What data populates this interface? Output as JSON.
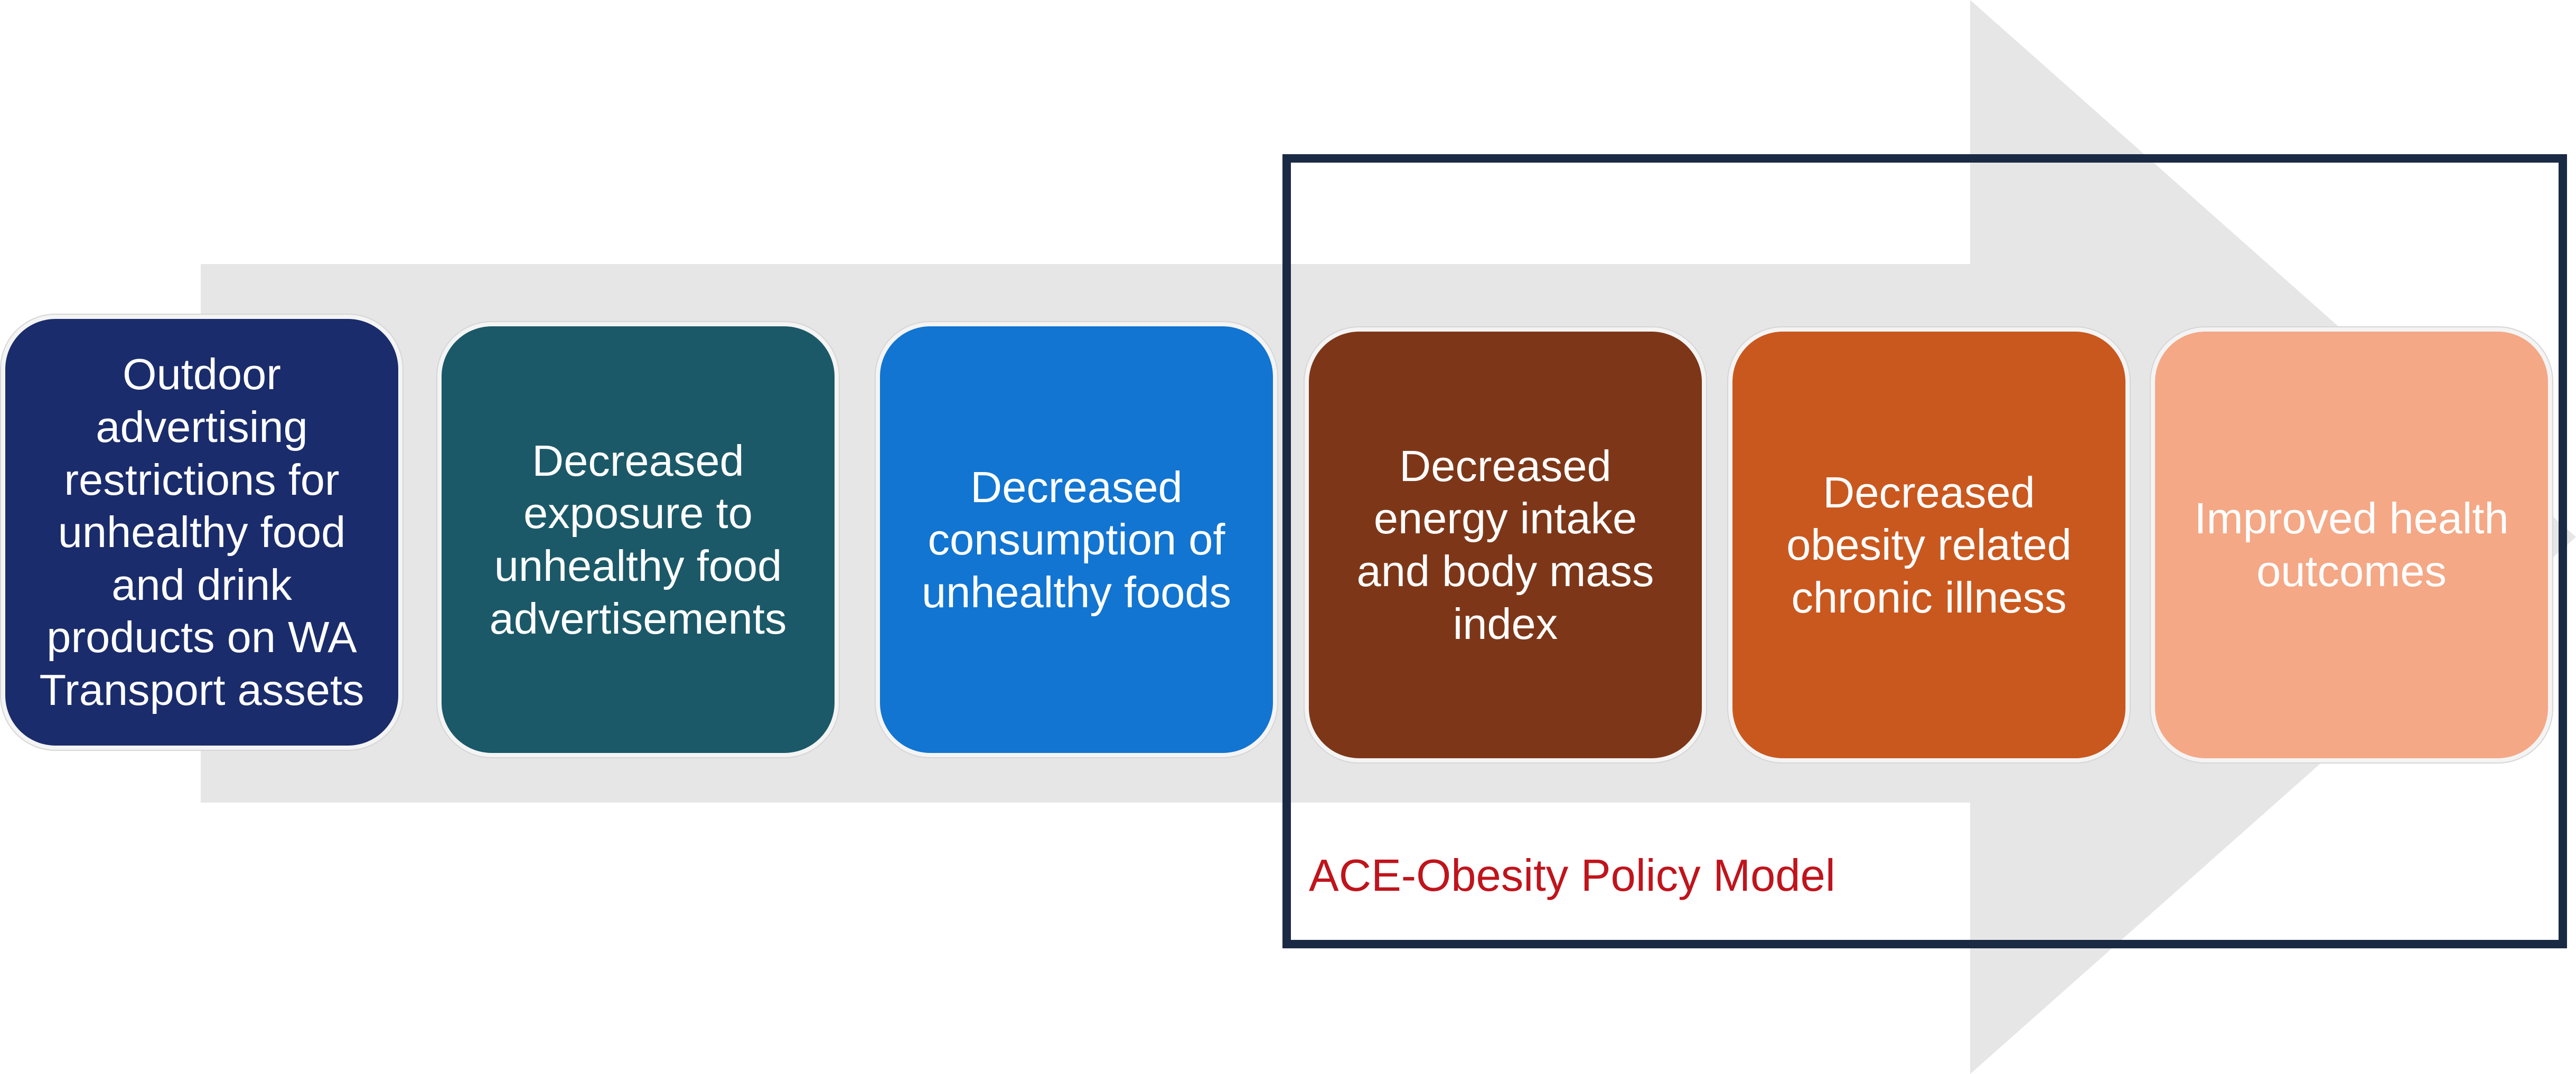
{
  "diagram": {
    "steps": [
      {
        "label": "Outdoor\nadvertising\nrestrictions for\nunhealthy food\nand drink\nproducts on WA\nTransport assets",
        "color": "#1a2c6b"
      },
      {
        "label": "Decreased\nexposure to\nunhealthy food\nadvertisements",
        "color": "#1b5968"
      },
      {
        "label": "Decreased\nconsumption of\nunhealthy foods",
        "color": "#1275d1"
      },
      {
        "label": "Decreased\nenergy intake\nand body mass\nindex",
        "color": "#7d3718"
      },
      {
        "label": "Decreased\nobesity related\nchronic illness",
        "color": "#c9581f"
      },
      {
        "label": "Improved health\noutcomes",
        "color": "#f4a886"
      }
    ],
    "model_label": "ACE-Obesity Policy Model",
    "arrow_color": "#e6e6e6",
    "box_border_color": "#1b2a44",
    "label_color": "#c0141c"
  }
}
